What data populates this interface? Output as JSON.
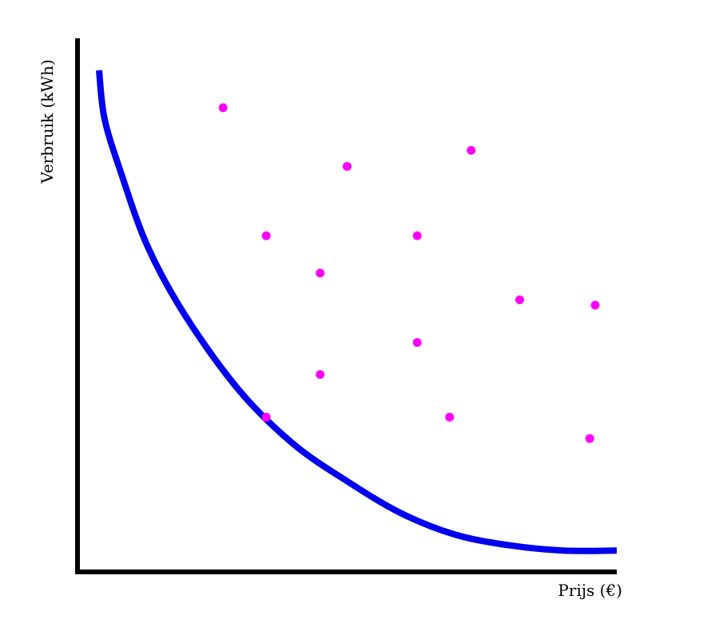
{
  "chart_data": {
    "type": "scatter",
    "xlabel": "Prijs (€)",
    "ylabel": "Verbruik (kWh)",
    "xlim": [
      0,
      10
    ],
    "ylim": [
      0,
      10
    ],
    "grid": false,
    "colors": {
      "axes": "#000000",
      "curve": "#0000ee",
      "points": "#ff00ff"
    },
    "points": [
      {
        "x": 2.7,
        "y": 8.7
      },
      {
        "x": 5.0,
        "y": 7.6
      },
      {
        "x": 7.3,
        "y": 7.9
      },
      {
        "x": 3.5,
        "y": 6.3
      },
      {
        "x": 4.5,
        "y": 5.6
      },
      {
        "x": 6.3,
        "y": 6.3
      },
      {
        "x": 8.2,
        "y": 5.1
      },
      {
        "x": 9.6,
        "y": 5.0
      },
      {
        "x": 6.3,
        "y": 4.3
      },
      {
        "x": 4.5,
        "y": 3.7
      },
      {
        "x": 3.5,
        "y": 2.9
      },
      {
        "x": 6.9,
        "y": 2.9
      },
      {
        "x": 9.5,
        "y": 2.5
      }
    ],
    "curve": {
      "type": "line",
      "points": [
        {
          "x": 0.4,
          "y": 9.4
        },
        {
          "x": 0.5,
          "y": 8.5
        },
        {
          "x": 0.8,
          "y": 7.5
        },
        {
          "x": 1.3,
          "y": 6.1
        },
        {
          "x": 2.0,
          "y": 4.8
        },
        {
          "x": 3.0,
          "y": 3.4
        },
        {
          "x": 4.0,
          "y": 2.4
        },
        {
          "x": 5.0,
          "y": 1.7
        },
        {
          "x": 6.0,
          "y": 1.1
        },
        {
          "x": 7.0,
          "y": 0.7
        },
        {
          "x": 8.0,
          "y": 0.5
        },
        {
          "x": 9.0,
          "y": 0.4
        },
        {
          "x": 10.0,
          "y": 0.4
        }
      ]
    }
  }
}
